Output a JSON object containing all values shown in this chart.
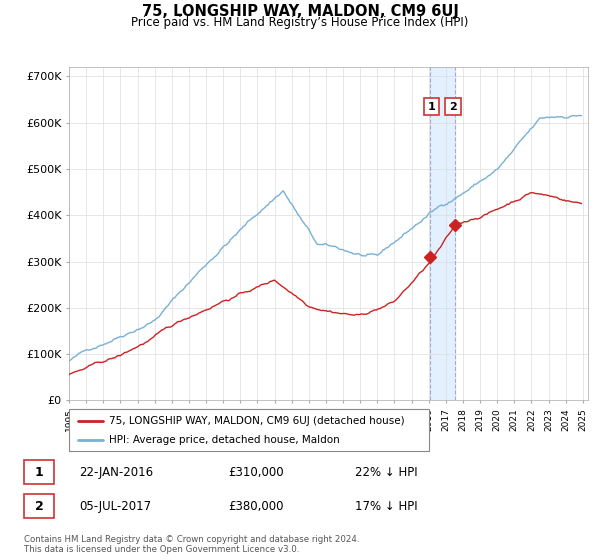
{
  "title": "75, LONGSHIP WAY, MALDON, CM9 6UJ",
  "subtitle": "Price paid vs. HM Land Registry’s House Price Index (HPI)",
  "hpi_color": "#7ab0d4",
  "price_color": "#cc2222",
  "highlight_color": "#ddeeff",
  "ylim": [
    0,
    720000
  ],
  "yticks": [
    0,
    100000,
    200000,
    300000,
    400000,
    500000,
    600000,
    700000
  ],
  "ytick_labels": [
    "£0",
    "£100K",
    "£200K",
    "£300K",
    "£400K",
    "£500K",
    "£600K",
    "£700K"
  ],
  "legend_label_price": "75, LONGSHIP WAY, MALDON, CM9 6UJ (detached house)",
  "legend_label_hpi": "HPI: Average price, detached house, Maldon",
  "transaction1_date": "22-JAN-2016",
  "transaction1_price": "£310,000",
  "transaction1_hpi": "22% ↓ HPI",
  "transaction2_date": "05-JUL-2017",
  "transaction2_price": "£380,000",
  "transaction2_hpi": "17% ↓ HPI",
  "footer": "Contains HM Land Registry data © Crown copyright and database right 2024.\nThis data is licensed under the Open Government Licence v3.0.",
  "highlight_xmin": 2016.05,
  "highlight_xmax": 2017.55,
  "transaction1_x": 2016.06,
  "transaction1_y": 310000,
  "transaction2_x": 2017.52,
  "transaction2_y": 380000,
  "xmin": 1995,
  "xmax": 2025,
  "hpi_seed": 42,
  "price_seed": 42
}
